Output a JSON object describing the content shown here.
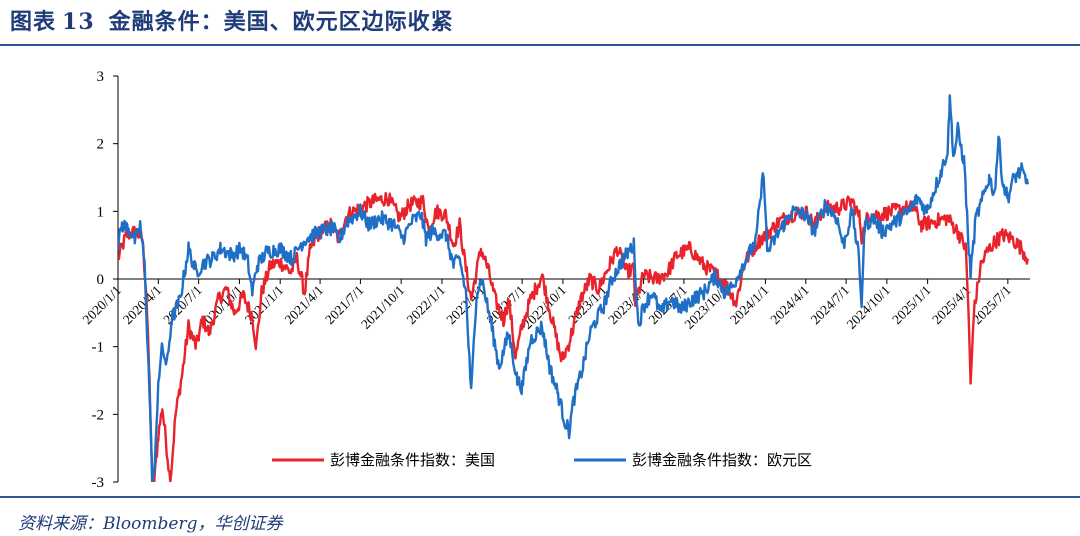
{
  "header": {
    "figure_label": "图表",
    "figure_number": "13",
    "title": "金融条件：美国、欧元区边际收紧"
  },
  "footer": {
    "source": "资料来源：Bloomberg，华创证券"
  },
  "colors": {
    "us": "#e8232b",
    "euro": "#1f6fc6",
    "rule": "#2f5496",
    "title": "#1f3b7a"
  },
  "chart_data": {
    "type": "line",
    "title": "",
    "xlabel": "",
    "ylabel": "",
    "ylim": [
      -3,
      3
    ],
    "yticks": [
      3,
      2,
      1,
      0,
      -1,
      -2,
      -3
    ],
    "xlim": [
      "2020-01-01",
      "2025-08-20"
    ],
    "xticks": [
      "2020/1/1",
      "2020/4/1",
      "2020/7/1",
      "2020/10/1",
      "2021/1/1",
      "2021/4/1",
      "2021/7/1",
      "2021/10/1",
      "2022/1/1",
      "2022/4/1",
      "2022/7/1",
      "2022/10/1",
      "2023/1/1",
      "2023/4/1",
      "2023/7/1",
      "2023/10/1",
      "2024/1/1",
      "2024/4/1",
      "2024/7/1",
      "2024/10/1",
      "2025/1/1",
      "2025/4/1",
      "2025/7/1"
    ],
    "grid": false,
    "legend_position": "bottom",
    "series": [
      {
        "name": "彭博金融条件指数：美国",
        "color": "#e8232b",
        "points": [
          [
            "2020-01-01",
            0.3
          ],
          [
            "2020-01-20",
            0.65
          ],
          [
            "2020-02-10",
            0.7
          ],
          [
            "2020-02-25",
            0.6
          ],
          [
            "2020-03-05",
            -0.2
          ],
          [
            "2020-03-12",
            -1.5
          ],
          [
            "2020-03-18",
            -2.9
          ],
          [
            "2020-03-23",
            -3.0
          ],
          [
            "2020-04-01",
            -2.3
          ],
          [
            "2020-04-10",
            -1.9
          ],
          [
            "2020-04-20",
            -2.5
          ],
          [
            "2020-04-28",
            -3.0
          ],
          [
            "2020-05-10",
            -2.0
          ],
          [
            "2020-05-25",
            -1.4
          ],
          [
            "2020-06-08",
            -0.7
          ],
          [
            "2020-06-25",
            -1.0
          ],
          [
            "2020-07-10",
            -0.6
          ],
          [
            "2020-07-25",
            -0.8
          ],
          [
            "2020-08-15",
            -0.3
          ],
          [
            "2020-09-01",
            -0.15
          ],
          [
            "2020-09-20",
            -0.5
          ],
          [
            "2020-10-10",
            -0.25
          ],
          [
            "2020-10-30",
            -0.55
          ],
          [
            "2020-11-08",
            -1.0
          ],
          [
            "2020-11-20",
            -0.2
          ],
          [
            "2020-12-10",
            0.2
          ],
          [
            "2021-01-01",
            0.25
          ],
          [
            "2021-01-25",
            0.1
          ],
          [
            "2021-02-08",
            0.3
          ],
          [
            "2021-02-25",
            -0.2
          ],
          [
            "2021-03-10",
            0.45
          ],
          [
            "2021-04-01",
            0.7
          ],
          [
            "2021-04-25",
            0.8
          ],
          [
            "2021-05-12",
            0.6
          ],
          [
            "2021-06-01",
            0.95
          ],
          [
            "2021-07-01",
            1.05
          ],
          [
            "2021-08-01",
            1.15
          ],
          [
            "2021-09-01",
            1.2
          ],
          [
            "2021-09-28",
            0.9
          ],
          [
            "2021-10-20",
            1.1
          ],
          [
            "2021-11-20",
            1.15
          ],
          [
            "2021-12-01",
            0.75
          ],
          [
            "2021-12-20",
            1.0
          ],
          [
            "2022-01-10",
            0.95
          ],
          [
            "2022-01-27",
            0.5
          ],
          [
            "2022-02-10",
            0.8
          ],
          [
            "2022-02-24",
            0.15
          ],
          [
            "2022-03-08",
            -0.3
          ],
          [
            "2022-03-30",
            0.45
          ],
          [
            "2022-04-15",
            0.15
          ],
          [
            "2022-05-01",
            -0.3
          ],
          [
            "2022-05-20",
            -0.6
          ],
          [
            "2022-06-01",
            -0.3
          ],
          [
            "2022-06-16",
            -1.15
          ],
          [
            "2022-07-01",
            -0.7
          ],
          [
            "2022-07-20",
            -0.3
          ],
          [
            "2022-08-15",
            0.05
          ],
          [
            "2022-09-01",
            -0.45
          ],
          [
            "2022-09-28",
            -1.2
          ],
          [
            "2022-10-12",
            -1.0
          ],
          [
            "2022-10-25",
            -0.7
          ],
          [
            "2022-11-10",
            -0.3
          ],
          [
            "2022-12-01",
            0.0
          ],
          [
            "2022-12-20",
            -0.15
          ],
          [
            "2023-01-10",
            0.15
          ],
          [
            "2023-02-01",
            0.45
          ],
          [
            "2023-02-22",
            0.1
          ],
          [
            "2023-03-10",
            0.15
          ],
          [
            "2023-03-13",
            -0.35
          ],
          [
            "2023-04-01",
            0.05
          ],
          [
            "2023-05-01",
            0.0
          ],
          [
            "2023-05-25",
            0.1
          ],
          [
            "2023-06-15",
            0.35
          ],
          [
            "2023-07-15",
            0.45
          ],
          [
            "2023-08-15",
            0.2
          ],
          [
            "2023-09-15",
            0.05
          ],
          [
            "2023-10-05",
            -0.1
          ],
          [
            "2023-10-27",
            -0.35
          ],
          [
            "2023-11-15",
            0.25
          ],
          [
            "2023-12-15",
            0.55
          ],
          [
            "2024-01-10",
            0.7
          ],
          [
            "2024-02-01",
            0.85
          ],
          [
            "2024-03-01",
            0.95
          ],
          [
            "2024-04-01",
            1.0
          ],
          [
            "2024-04-19",
            0.8
          ],
          [
            "2024-05-15",
            1.05
          ],
          [
            "2024-06-15",
            1.05
          ],
          [
            "2024-07-15",
            1.15
          ],
          [
            "2024-08-01",
            0.9
          ],
          [
            "2024-08-05",
            0.6
          ],
          [
            "2024-08-20",
            0.95
          ],
          [
            "2024-09-15",
            0.95
          ],
          [
            "2024-10-15",
            1.0
          ],
          [
            "2024-11-10",
            1.05
          ],
          [
            "2024-12-01",
            1.05
          ],
          [
            "2024-12-18",
            0.8
          ],
          [
            "2025-01-15",
            0.85
          ],
          [
            "2025-02-15",
            0.9
          ],
          [
            "2025-03-10",
            0.7
          ],
          [
            "2025-03-28",
            0.45
          ],
          [
            "2025-04-04",
            -0.6
          ],
          [
            "2025-04-08",
            -1.6
          ],
          [
            "2025-04-15",
            -0.5
          ],
          [
            "2025-05-01",
            0.2
          ],
          [
            "2025-05-15",
            0.4
          ],
          [
            "2025-06-01",
            0.55
          ],
          [
            "2025-06-20",
            0.65
          ],
          [
            "2025-07-10",
            0.6
          ],
          [
            "2025-08-01",
            0.45
          ],
          [
            "2025-08-15",
            0.3
          ]
        ]
      },
      {
        "name": "彭博金融条件指数：欧元区",
        "color": "#1f6fc6",
        "points": [
          [
            "2020-01-01",
            0.5
          ],
          [
            "2020-01-10",
            0.8
          ],
          [
            "2020-01-25",
            0.75
          ],
          [
            "2020-02-10",
            0.55
          ],
          [
            "2020-02-20",
            0.8
          ],
          [
            "2020-03-01",
            0.2
          ],
          [
            "2020-03-08",
            -1.0
          ],
          [
            "2020-03-14",
            -2.0
          ],
          [
            "2020-03-18",
            -3.0
          ],
          [
            "2020-03-24",
            -2.8
          ],
          [
            "2020-04-01",
            -1.5
          ],
          [
            "2020-04-10",
            -1.0
          ],
          [
            "2020-04-20",
            -1.3
          ],
          [
            "2020-05-01",
            -0.6
          ],
          [
            "2020-05-20",
            -0.3
          ],
          [
            "2020-06-08",
            0.45
          ],
          [
            "2020-06-25",
            0.1
          ],
          [
            "2020-07-15",
            0.25
          ],
          [
            "2020-08-01",
            0.3
          ],
          [
            "2020-08-20",
            0.45
          ],
          [
            "2020-09-15",
            0.35
          ],
          [
            "2020-10-05",
            0.45
          ],
          [
            "2020-10-20",
            0.25
          ],
          [
            "2020-10-30",
            -0.2
          ],
          [
            "2020-11-10",
            0.2
          ],
          [
            "2020-12-01",
            0.4
          ],
          [
            "2021-01-01",
            0.45
          ],
          [
            "2021-01-28",
            0.3
          ],
          [
            "2021-02-15",
            0.5
          ],
          [
            "2021-03-01",
            0.6
          ],
          [
            "2021-04-01",
            0.7
          ],
          [
            "2021-05-01",
            0.75
          ],
          [
            "2021-05-13",
            0.55
          ],
          [
            "2021-06-01",
            0.85
          ],
          [
            "2021-07-01",
            1.0
          ],
          [
            "2021-07-20",
            0.8
          ],
          [
            "2021-08-15",
            0.9
          ],
          [
            "2021-09-15",
            0.8
          ],
          [
            "2021-10-05",
            0.6
          ],
          [
            "2021-10-25",
            0.85
          ],
          [
            "2021-11-15",
            0.95
          ],
          [
            "2021-11-26",
            0.6
          ],
          [
            "2021-12-10",
            0.7
          ],
          [
            "2022-01-10",
            0.65
          ],
          [
            "2022-01-27",
            0.2
          ],
          [
            "2022-02-10",
            0.3
          ],
          [
            "2022-02-24",
            -0.2
          ],
          [
            "2022-03-08",
            -1.7
          ],
          [
            "2022-03-20",
            -0.2
          ],
          [
            "2022-04-01",
            0.0
          ],
          [
            "2022-04-20",
            -0.6
          ],
          [
            "2022-05-10",
            -1.3
          ],
          [
            "2022-06-01",
            -0.8
          ],
          [
            "2022-06-20",
            -1.5
          ],
          [
            "2022-07-01",
            -1.6
          ],
          [
            "2022-07-20",
            -0.9
          ],
          [
            "2022-08-15",
            -0.7
          ],
          [
            "2022-09-01",
            -1.3
          ],
          [
            "2022-09-20",
            -1.7
          ],
          [
            "2022-10-05",
            -2.1
          ],
          [
            "2022-10-15",
            -2.25
          ],
          [
            "2022-10-25",
            -1.8
          ],
          [
            "2022-11-15",
            -1.3
          ],
          [
            "2022-12-01",
            -0.8
          ],
          [
            "2022-12-15",
            -0.6
          ],
          [
            "2023-01-01",
            -0.4
          ],
          [
            "2023-01-20",
            0.0
          ],
          [
            "2023-02-10",
            0.25
          ],
          [
            "2023-02-25",
            0.4
          ],
          [
            "2023-03-10",
            0.5
          ],
          [
            "2023-03-20",
            -0.7
          ],
          [
            "2023-04-01",
            -0.4
          ],
          [
            "2023-04-20",
            -0.2
          ],
          [
            "2023-05-10",
            -0.5
          ],
          [
            "2023-06-01",
            -0.3
          ],
          [
            "2023-06-25",
            -0.45
          ],
          [
            "2023-07-20",
            -0.3
          ],
          [
            "2023-08-15",
            -0.2
          ],
          [
            "2023-09-10",
            0.05
          ],
          [
            "2023-10-01",
            -0.2
          ],
          [
            "2023-10-20",
            -0.1
          ],
          [
            "2023-11-10",
            0.2
          ],
          [
            "2023-12-10",
            0.55
          ],
          [
            "2023-12-28",
            1.6
          ],
          [
            "2024-01-05",
            0.4
          ],
          [
            "2024-02-01",
            0.7
          ],
          [
            "2024-03-01",
            1.0
          ],
          [
            "2024-04-01",
            0.95
          ],
          [
            "2024-04-20",
            0.7
          ],
          [
            "2024-05-15",
            1.1
          ],
          [
            "2024-06-10",
            0.9
          ],
          [
            "2024-06-25",
            0.5
          ],
          [
            "2024-07-15",
            1.0
          ],
          [
            "2024-07-30",
            0.3
          ],
          [
            "2024-08-05",
            -0.35
          ],
          [
            "2024-08-12",
            0.8
          ],
          [
            "2024-09-01",
            0.9
          ],
          [
            "2024-09-20",
            0.7
          ],
          [
            "2024-10-10",
            0.8
          ],
          [
            "2024-10-30",
            0.9
          ],
          [
            "2024-11-20",
            1.0
          ],
          [
            "2024-12-10",
            1.2
          ],
          [
            "2024-12-30",
            1.0
          ],
          [
            "2025-01-15",
            1.3
          ],
          [
            "2025-02-01",
            1.6
          ],
          [
            "2025-02-15",
            1.9
          ],
          [
            "2025-02-20",
            2.65
          ],
          [
            "2025-03-01",
            1.8
          ],
          [
            "2025-03-10",
            2.2
          ],
          [
            "2025-03-25",
            1.7
          ],
          [
            "2025-04-04",
            0.4
          ],
          [
            "2025-04-08",
            0.1
          ],
          [
            "2025-04-20",
            0.9
          ],
          [
            "2025-05-01",
            1.1
          ],
          [
            "2025-05-20",
            1.5
          ],
          [
            "2025-06-01",
            1.25
          ],
          [
            "2025-06-10",
            2.1
          ],
          [
            "2025-06-20",
            1.4
          ],
          [
            "2025-07-01",
            1.2
          ],
          [
            "2025-07-15",
            1.5
          ],
          [
            "2025-08-01",
            1.6
          ],
          [
            "2025-08-15",
            1.4
          ]
        ]
      }
    ]
  }
}
